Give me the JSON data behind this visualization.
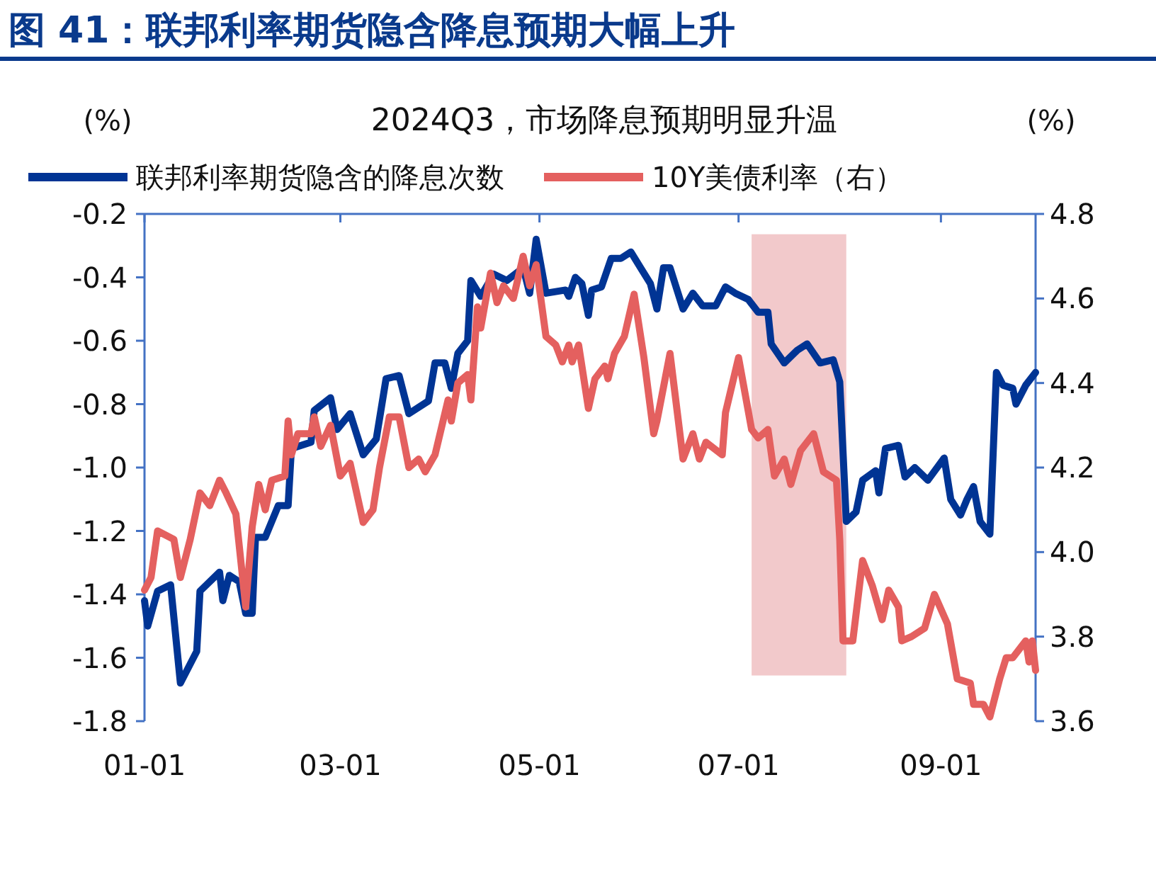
{
  "chart_data": {
    "type": "line",
    "title": "图 41：联邦利率期货隐含降息预期大幅上升",
    "subtitle": "2024Q3，市场降息预期明显升温",
    "ylabel": "(%)",
    "y2label": "(%)",
    "xlim": [
      "2024-01-01",
      "2024-09-30"
    ],
    "xticks": [
      {
        "value": "2024-01-01",
        "label": "01-01"
      },
      {
        "value": "2024-03-01",
        "label": "03-01"
      },
      {
        "value": "2024-05-01",
        "label": "05-01"
      },
      {
        "value": "2024-07-01",
        "label": "07-01"
      },
      {
        "value": "2024-09-01",
        "label": "09-01"
      }
    ],
    "ylim": [
      -1.8,
      -0.2
    ],
    "yticks": [
      -1.8,
      -1.6,
      -1.4,
      -1.2,
      {
        "value": -1.0,
        "label": "-1.0"
      },
      -0.8,
      -0.6,
      -0.4,
      -0.2
    ],
    "y2lim": [
      3.6,
      4.8
    ],
    "y2ticks": [
      3.6,
      3.8,
      {
        "value": 4.0,
        "label": "4.0"
      },
      4.2,
      4.4,
      4.6,
      4.8
    ],
    "grid": false,
    "legend": "top",
    "line_style": "solid",
    "marker": "none",
    "bands": [
      {
        "axis": "x",
        "from": "2024-07-05",
        "to": "2024-08-03",
        "color": "#f2c9cb"
      }
    ],
    "series": [
      {
        "name": "联邦利率期货隐含的降息次数",
        "color": "#003494",
        "x": [
          "2024-01-01",
          "2024-01-02",
          "2024-01-05",
          "2024-01-09",
          "2024-01-12",
          "2024-01-17",
          "2024-01-18",
          "2024-01-24",
          "2024-01-25",
          "2024-01-27",
          "2024-01-30",
          "2024-02-01",
          "2024-02-03",
          "2024-02-04",
          "2024-02-07",
          "2024-02-11",
          "2024-02-14",
          "2024-02-15",
          "2024-02-21",
          "2024-02-22",
          "2024-02-27",
          "2024-02-29",
          "2024-03-04",
          "2024-03-08",
          "2024-03-12",
          "2024-03-15",
          "2024-03-19",
          "2024-03-22",
          "2024-03-28",
          "2024-03-30",
          "2024-04-02",
          "2024-04-04",
          "2024-04-06",
          "2024-04-09",
          "2024-04-10",
          "2024-04-13",
          "2024-04-17",
          "2024-04-21",
          "2024-04-26",
          "2024-04-28",
          "2024-04-30",
          "2024-05-03",
          "2024-05-09",
          "2024-05-10",
          "2024-05-12",
          "2024-05-14",
          "2024-05-16",
          "2024-05-17",
          "2024-05-20",
          "2024-05-23",
          "2024-05-26",
          "2024-05-29",
          "2024-06-01",
          "2024-06-04",
          "2024-06-06",
          "2024-06-08",
          "2024-06-10",
          "2024-06-14",
          "2024-06-17",
          "2024-06-20",
          "2024-06-24",
          "2024-06-27",
          "2024-06-30",
          "2024-07-04",
          "2024-07-07",
          "2024-07-10",
          "2024-07-11",
          "2024-07-15",
          "2024-07-19",
          "2024-07-22",
          "2024-07-26",
          "2024-07-30",
          "2024-08-01",
          "2024-08-03",
          "2024-08-06",
          "2024-08-08",
          "2024-08-12",
          "2024-08-13",
          "2024-08-15",
          "2024-08-19",
          "2024-08-21",
          "2024-08-24",
          "2024-08-28",
          "2024-09-02",
          "2024-09-04",
          "2024-09-07",
          "2024-09-09",
          "2024-09-11",
          "2024-09-13",
          "2024-09-16",
          "2024-09-18",
          "2024-09-20",
          "2024-09-23",
          "2024-09-24",
          "2024-09-27",
          "2024-09-30"
        ],
        "values": [
          -1.42,
          -1.5,
          -1.39,
          -1.37,
          -1.68,
          -1.58,
          -1.39,
          -1.33,
          -1.42,
          -1.34,
          -1.36,
          -1.46,
          -1.46,
          -1.22,
          -1.22,
          -1.12,
          -1.12,
          -0.94,
          -0.92,
          -0.82,
          -0.78,
          -0.88,
          -0.83,
          -0.96,
          -0.91,
          -0.72,
          -0.71,
          -0.83,
          -0.79,
          -0.67,
          -0.67,
          -0.75,
          -0.64,
          -0.6,
          -0.41,
          -0.46,
          -0.39,
          -0.41,
          -0.37,
          -0.45,
          -0.28,
          -0.45,
          -0.44,
          -0.46,
          -0.4,
          -0.42,
          -0.52,
          -0.44,
          -0.43,
          -0.34,
          -0.34,
          -0.32,
          -0.37,
          -0.42,
          -0.5,
          -0.37,
          -0.37,
          -0.5,
          -0.45,
          -0.49,
          -0.49,
          -0.43,
          -0.45,
          -0.47,
          -0.51,
          -0.51,
          -0.61,
          -0.67,
          -0.63,
          -0.61,
          -0.67,
          -0.66,
          -0.73,
          -1.17,
          -1.14,
          -1.04,
          -1.01,
          -1.08,
          -0.94,
          -0.93,
          -1.03,
          -1.0,
          -1.04,
          -0.97,
          -1.1,
          -1.15,
          -1.1,
          -1.06,
          -1.17,
          -1.21,
          -0.7,
          -0.74,
          -0.75,
          -0.8,
          -0.74,
          -0.7
        ]
      },
      {
        "name": "10Y美债利率（右）",
        "color": "#e4605f",
        "axis": "y2",
        "x": [
          "2024-01-01",
          "2024-01-03",
          "2024-01-05",
          "2024-01-10",
          "2024-01-12",
          "2024-01-15",
          "2024-01-18",
          "2024-01-21",
          "2024-01-24",
          "2024-01-26",
          "2024-01-29",
          "2024-02-01",
          "2024-02-03",
          "2024-02-05",
          "2024-02-07",
          "2024-02-09",
          "2024-02-13",
          "2024-02-14",
          "2024-02-15",
          "2024-02-17",
          "2024-02-21",
          "2024-02-22",
          "2024-02-24",
          "2024-02-27",
          "2024-03-01",
          "2024-03-04",
          "2024-03-08",
          "2024-03-11",
          "2024-03-13",
          "2024-03-16",
          "2024-03-19",
          "2024-03-22",
          "2024-03-25",
          "2024-03-27",
          "2024-03-30",
          "2024-04-03",
          "2024-04-04",
          "2024-04-06",
          "2024-04-09",
          "2024-04-10",
          "2024-04-12",
          "2024-04-13",
          "2024-04-16",
          "2024-04-18",
          "2024-04-20",
          "2024-04-23",
          "2024-04-26",
          "2024-04-28",
          "2024-04-30",
          "2024-05-03",
          "2024-05-06",
          "2024-05-08",
          "2024-05-10",
          "2024-05-11",
          "2024-05-13",
          "2024-05-16",
          "2024-05-18",
          "2024-05-21",
          "2024-05-22",
          "2024-05-24",
          "2024-05-27",
          "2024-05-30",
          "2024-06-02",
          "2024-06-05",
          "2024-06-06",
          "2024-06-10",
          "2024-06-14",
          "2024-06-17",
          "2024-06-19",
          "2024-06-21",
          "2024-06-26",
          "2024-06-27",
          "2024-07-01",
          "2024-07-05",
          "2024-07-07",
          "2024-07-10",
          "2024-07-12",
          "2024-07-15",
          "2024-07-17",
          "2024-07-20",
          "2024-07-24",
          "2024-07-27",
          "2024-07-31",
          "2024-08-01",
          "2024-08-02",
          "2024-08-05",
          "2024-08-08",
          "2024-08-11",
          "2024-08-14",
          "2024-08-16",
          "2024-08-19",
          "2024-08-20",
          "2024-08-23",
          "2024-08-27",
          "2024-08-30",
          "2024-09-03",
          "2024-09-06",
          "2024-09-10",
          "2024-09-11",
          "2024-09-14",
          "2024-09-16",
          "2024-09-19",
          "2024-09-21",
          "2024-09-23",
          "2024-09-27",
          "2024-09-28",
          "2024-09-29",
          "2024-09-30"
        ],
        "values": [
          3.91,
          3.94,
          4.05,
          4.03,
          3.94,
          4.03,
          4.14,
          4.11,
          4.17,
          4.14,
          4.09,
          3.87,
          4.06,
          4.16,
          4.1,
          4.17,
          4.18,
          4.31,
          4.23,
          4.28,
          4.28,
          4.32,
          4.25,
          4.3,
          4.18,
          4.21,
          4.07,
          4.1,
          4.2,
          4.32,
          4.32,
          4.2,
          4.22,
          4.19,
          4.23,
          4.36,
          4.31,
          4.4,
          4.42,
          4.36,
          4.58,
          4.53,
          4.66,
          4.59,
          4.63,
          4.6,
          4.7,
          4.63,
          4.68,
          4.51,
          4.49,
          4.45,
          4.49,
          4.45,
          4.49,
          4.34,
          4.41,
          4.44,
          4.41,
          4.47,
          4.51,
          4.61,
          4.46,
          4.28,
          4.31,
          4.47,
          4.22,
          4.28,
          4.22,
          4.26,
          4.23,
          4.33,
          4.46,
          4.29,
          4.27,
          4.29,
          4.18,
          4.22,
          4.16,
          4.24,
          4.28,
          4.19,
          4.17,
          4.03,
          3.79,
          3.79,
          3.98,
          3.92,
          3.84,
          3.91,
          3.87,
          3.79,
          3.8,
          3.82,
          3.9,
          3.83,
          3.7,
          3.69,
          3.64,
          3.64,
          3.61,
          3.7,
          3.75,
          3.75,
          3.79,
          3.74,
          3.79,
          3.72
        ]
      }
    ]
  }
}
